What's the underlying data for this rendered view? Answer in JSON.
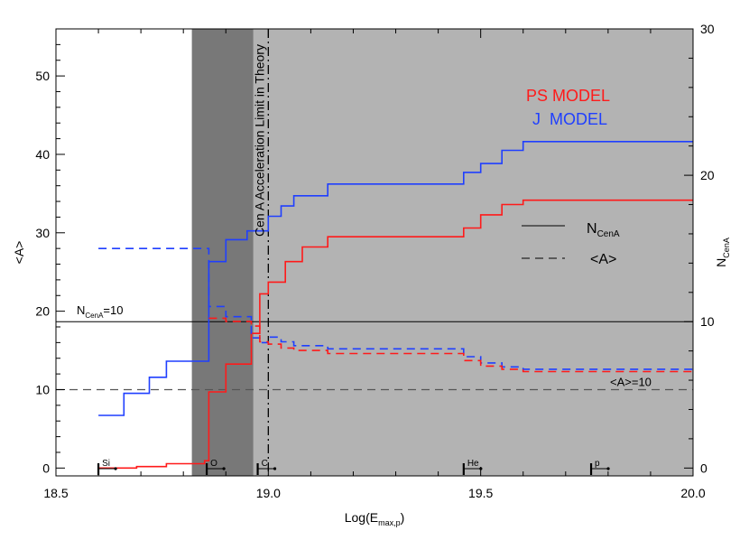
{
  "chart_data": {
    "type": "line",
    "x_axis": {
      "label_main": "Log(E",
      "label_sub": "max,p",
      "label_end": ")",
      "range": [
        18.5,
        20.0
      ],
      "ticks": [
        18.5,
        19.0,
        19.5,
        20.0
      ],
      "tick_labels": [
        "18.5",
        "19.0",
        "19.5",
        "20.0"
      ]
    },
    "y_left": {
      "label": "<A>",
      "range": [
        -1,
        56
      ],
      "ticks": [
        0,
        10,
        20,
        30,
        40,
        50
      ],
      "tick_labels": [
        "0",
        "10",
        "20",
        "30",
        "40",
        "50"
      ]
    },
    "y_right": {
      "label_main": "N",
      "label_sub": "CenA",
      "range": [
        -0.5357,
        30.0
      ],
      "ticks": [
        0,
        10,
        20,
        30
      ],
      "tick_labels": [
        "0",
        "10",
        "20",
        "30"
      ]
    },
    "shaded_regions": [
      {
        "x_start": 18.82,
        "x_end": 18.965,
        "color": "#787878"
      },
      {
        "x_start": 18.965,
        "x_end": 20.0,
        "color": "#b3b3b3"
      }
    ],
    "vertical_line": {
      "x": 19.0,
      "label": "Cen A Acceleration Limit in Theory"
    },
    "reference_lines": [
      {
        "axis": "right",
        "value": 10,
        "label_main": "N",
        "label_sub": "CenA",
        "label_end": "=10",
        "style": "solid"
      },
      {
        "axis": "left",
        "value": 10,
        "label": "<A>=10",
        "style": "dashed"
      }
    ],
    "model_labels": {
      "ps": "PS MODEL",
      "j": "J  MODEL"
    },
    "line_legend": [
      {
        "style": "solid",
        "label_main": "N",
        "label_sub": "CenA"
      },
      {
        "style": "dashed",
        "label_main": "<A>"
      }
    ],
    "element_markers": [
      {
        "x": 18.6,
        "label": "Si"
      },
      {
        "x": 18.855,
        "label": "O"
      },
      {
        "x": 18.975,
        "label": "C"
      },
      {
        "x": 19.46,
        "label": "He"
      },
      {
        "x": 19.76,
        "label": "p"
      }
    ],
    "series": [
      {
        "name": "J MODEL",
        "quantity": "N_CenA",
        "axis": "right",
        "color": "#1f3fff",
        "style": "solid",
        "x": [
          18.6,
          18.66,
          18.72,
          18.76,
          18.85,
          18.86,
          18.9,
          18.95,
          19.0,
          19.03,
          19.06,
          19.14,
          19.46,
          19.5,
          19.55,
          19.6,
          20.0
        ],
        "y": [
          3.6,
          5.1,
          6.2,
          7.3,
          7.3,
          14.1,
          15.6,
          16.2,
          17.2,
          17.9,
          18.6,
          19.4,
          20.2,
          20.8,
          21.7,
          22.3,
          22.3
        ]
      },
      {
        "name": "PS MODEL",
        "quantity": "N_CenA",
        "axis": "right",
        "color": "#ff1a1a",
        "style": "solid",
        "x": [
          18.6,
          18.69,
          18.76,
          18.85,
          18.86,
          18.9,
          18.96,
          18.98,
          19.0,
          19.04,
          19.08,
          19.14,
          19.46,
          19.5,
          19.55,
          19.6,
          20.0
        ],
        "y": [
          0,
          0.1,
          0.3,
          0.5,
          5.2,
          7.1,
          9.2,
          11.9,
          12.7,
          14.1,
          15.1,
          15.8,
          16.4,
          17.3,
          18.0,
          18.3,
          18.3
        ]
      },
      {
        "name": "J MODEL",
        "quantity": "<A>",
        "axis": "left",
        "color": "#1f3fff",
        "style": "dashed",
        "x": [
          18.6,
          18.85,
          18.86,
          18.9,
          18.96,
          18.98,
          19.0,
          19.03,
          19.06,
          19.14,
          19.46,
          19.5,
          19.55,
          19.6,
          20.0
        ],
        "y": [
          28.0,
          28.0,
          20.6,
          19.3,
          16.6,
          16.0,
          16.7,
          16.1,
          15.6,
          15.2,
          14.2,
          13.4,
          12.9,
          12.6,
          12.9
        ]
      },
      {
        "name": "PS MODEL",
        "quantity": "<A>",
        "axis": "left",
        "color": "#ff1a1a",
        "style": "dashed",
        "x": [
          18.86,
          18.9,
          18.96,
          18.98,
          19.0,
          19.03,
          19.06,
          19.14,
          19.46,
          19.5,
          19.55,
          19.6,
          20.0
        ],
        "y": [
          19.1,
          18.7,
          18.1,
          16.1,
          15.8,
          15.3,
          15.0,
          14.6,
          13.7,
          13.0,
          12.6,
          12.3,
          12.6
        ]
      }
    ]
  }
}
